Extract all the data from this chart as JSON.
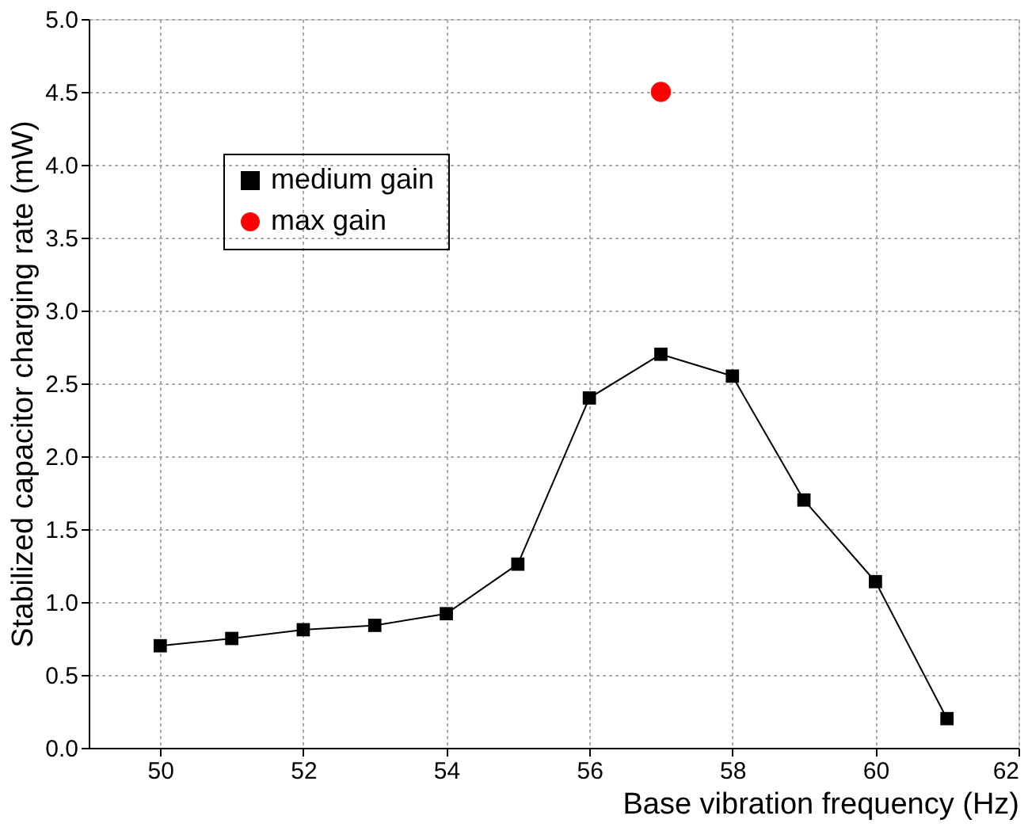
{
  "chart_data": {
    "type": "line",
    "xlabel": "Base vibration frequency (Hz)",
    "ylabel": "Stabilized capacitor charging rate (mW)",
    "xlim": [
      49,
      62
    ],
    "xticks": [
      50,
      52,
      54,
      56,
      58,
      60,
      62
    ],
    "ylim": [
      0,
      5
    ],
    "yticks": [
      {
        "value": 0,
        "label": "0.0"
      },
      0.5,
      {
        "value": 1,
        "label": "1.0"
      },
      1.5,
      {
        "value": 2,
        "label": "2.0"
      },
      2.5,
      {
        "value": 3,
        "label": "3.0"
      },
      3.5,
      {
        "value": 4,
        "label": "4.0"
      },
      4.5,
      {
        "value": 5,
        "label": "5.0"
      }
    ],
    "grid": true,
    "legend": "top left",
    "series": [
      {
        "name": "medium gain",
        "marker": "square",
        "line_style": "solid",
        "color": "#000000",
        "x": [
          50,
          51,
          52,
          53,
          54,
          55,
          56,
          57,
          58,
          59,
          60,
          61
        ],
        "values": [
          0.7,
          0.75,
          0.81,
          0.84,
          0.92,
          1.26,
          2.4,
          2.7,
          2.55,
          1.7,
          1.14,
          0.2
        ]
      },
      {
        "name": "max gain",
        "type": "scatter",
        "marker": "circle",
        "color": "#ff0000",
        "x": [
          57
        ],
        "values": [
          4.5
        ]
      }
    ]
  }
}
